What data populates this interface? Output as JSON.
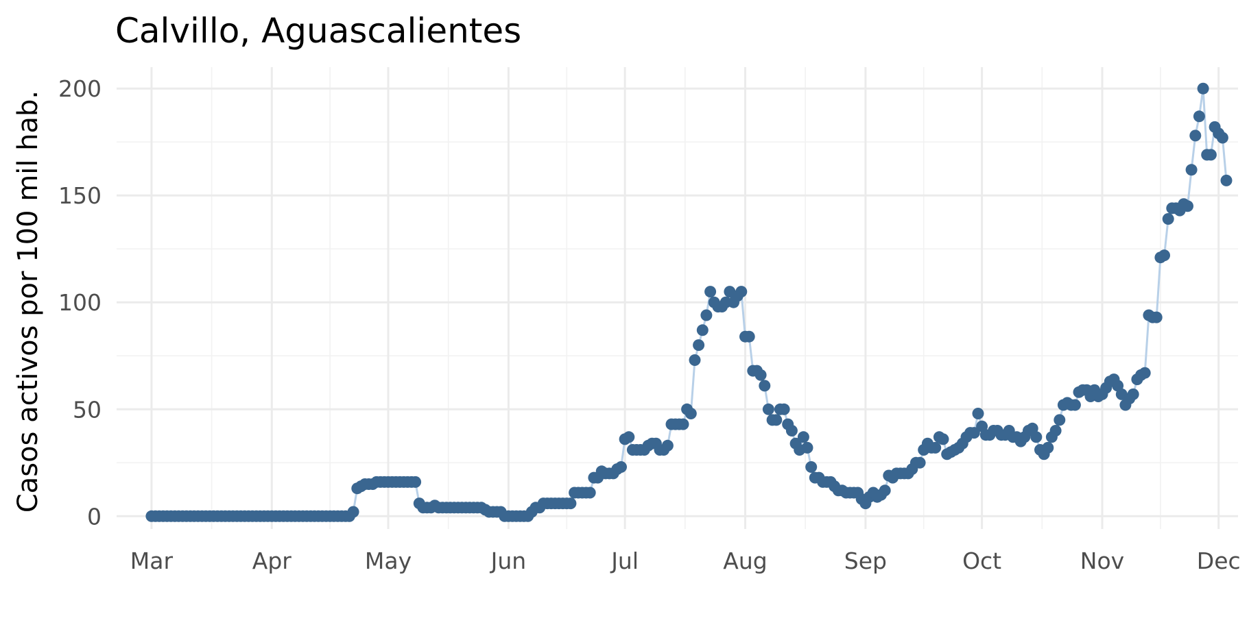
{
  "chart_data": {
    "type": "line",
    "title": "Calvillo, Aguascalientes",
    "xlabel": "",
    "ylabel": "Casos activos por 100 mil hab.",
    "x_start_date": "2020-03-01",
    "x_end_date": "2020-11-26",
    "xlim": [
      "2020-02-21",
      "2020-12-06"
    ],
    "ylim": [
      -6,
      210
    ],
    "y_ticks": [
      0,
      50,
      100,
      150,
      200
    ],
    "x_ticks": [
      {
        "label": "Mar",
        "date": "2020-03-01"
      },
      {
        "label": "Apr",
        "date": "2020-04-01"
      },
      {
        "label": "May",
        "date": "2020-05-01"
      },
      {
        "label": "Jun",
        "date": "2020-06-01"
      },
      {
        "label": "Jul",
        "date": "2020-07-01"
      },
      {
        "label": "Aug",
        "date": "2020-08-01"
      },
      {
        "label": "Sep",
        "date": "2020-09-01"
      },
      {
        "label": "Oct",
        "date": "2020-10-01"
      },
      {
        "label": "Nov",
        "date": "2020-11-01"
      },
      {
        "label": "Dec",
        "date": "2020-12-01"
      }
    ],
    "grid": true,
    "legend": "none",
    "colors": {
      "point": "#3a6690",
      "line": "#b8d0e8",
      "grid": "#ebebeb"
    },
    "series": [
      {
        "values": [
          0,
          0,
          0,
          0,
          0,
          0,
          0,
          0,
          0,
          0,
          0,
          0,
          0,
          0,
          0,
          0,
          0,
          0,
          0,
          0,
          0,
          0,
          0,
          0,
          0,
          0,
          0,
          0,
          0,
          0,
          0,
          0,
          0,
          0,
          0,
          0,
          0,
          0,
          0,
          0,
          0,
          0,
          0,
          0,
          0,
          0,
          0,
          0,
          0,
          0,
          0,
          0,
          2,
          13,
          14,
          15,
          15,
          15,
          16,
          16,
          16,
          16,
          16,
          16,
          16,
          16,
          16,
          16,
          16,
          6,
          4,
          4,
          4,
          5,
          4,
          4,
          4,
          4,
          4,
          4,
          4,
          4,
          4,
          4,
          4,
          4,
          3,
          2,
          2,
          2,
          2,
          0,
          0,
          0,
          0,
          0,
          0,
          0,
          2,
          4,
          4,
          6,
          6,
          6,
          6,
          6,
          6,
          6,
          6,
          11,
          11,
          11,
          11,
          11,
          18,
          18,
          21,
          20,
          20,
          20,
          22,
          23,
          36,
          37,
          31,
          31,
          31,
          31,
          33,
          34,
          34,
          31,
          31,
          33,
          43,
          43,
          43,
          43,
          50,
          48,
          73,
          80,
          87,
          94,
          105,
          100,
          98,
          98,
          100,
          105,
          100,
          103,
          105,
          84,
          84,
          68,
          68,
          66,
          61,
          50,
          45,
          45,
          50,
          50,
          43,
          40,
          34,
          31,
          37,
          32,
          23,
          18,
          18,
          16,
          16,
          16,
          14,
          12,
          12,
          11,
          11,
          11,
          11,
          8,
          6,
          9,
          11,
          9,
          10,
          12,
          19,
          18,
          20,
          20,
          20,
          20,
          22,
          25,
          25,
          31,
          34,
          32,
          32,
          37,
          36,
          29,
          30,
          31,
          32,
          34,
          37,
          39,
          39,
          48,
          42,
          38,
          38,
          40,
          40,
          38,
          38,
          40,
          37,
          37,
          35,
          37,
          40,
          41,
          37,
          31,
          29,
          32,
          37,
          40,
          45,
          52,
          53,
          52,
          52,
          58,
          59,
          59,
          56,
          59,
          56,
          57,
          60,
          63,
          64,
          61,
          57,
          52,
          55,
          57,
          64,
          66,
          67,
          94,
          93,
          93,
          121,
          122,
          139,
          144,
          144,
          143,
          146,
          145,
          162,
          178,
          187,
          200,
          169,
          169,
          182,
          179,
          177,
          157
        ]
      }
    ]
  }
}
